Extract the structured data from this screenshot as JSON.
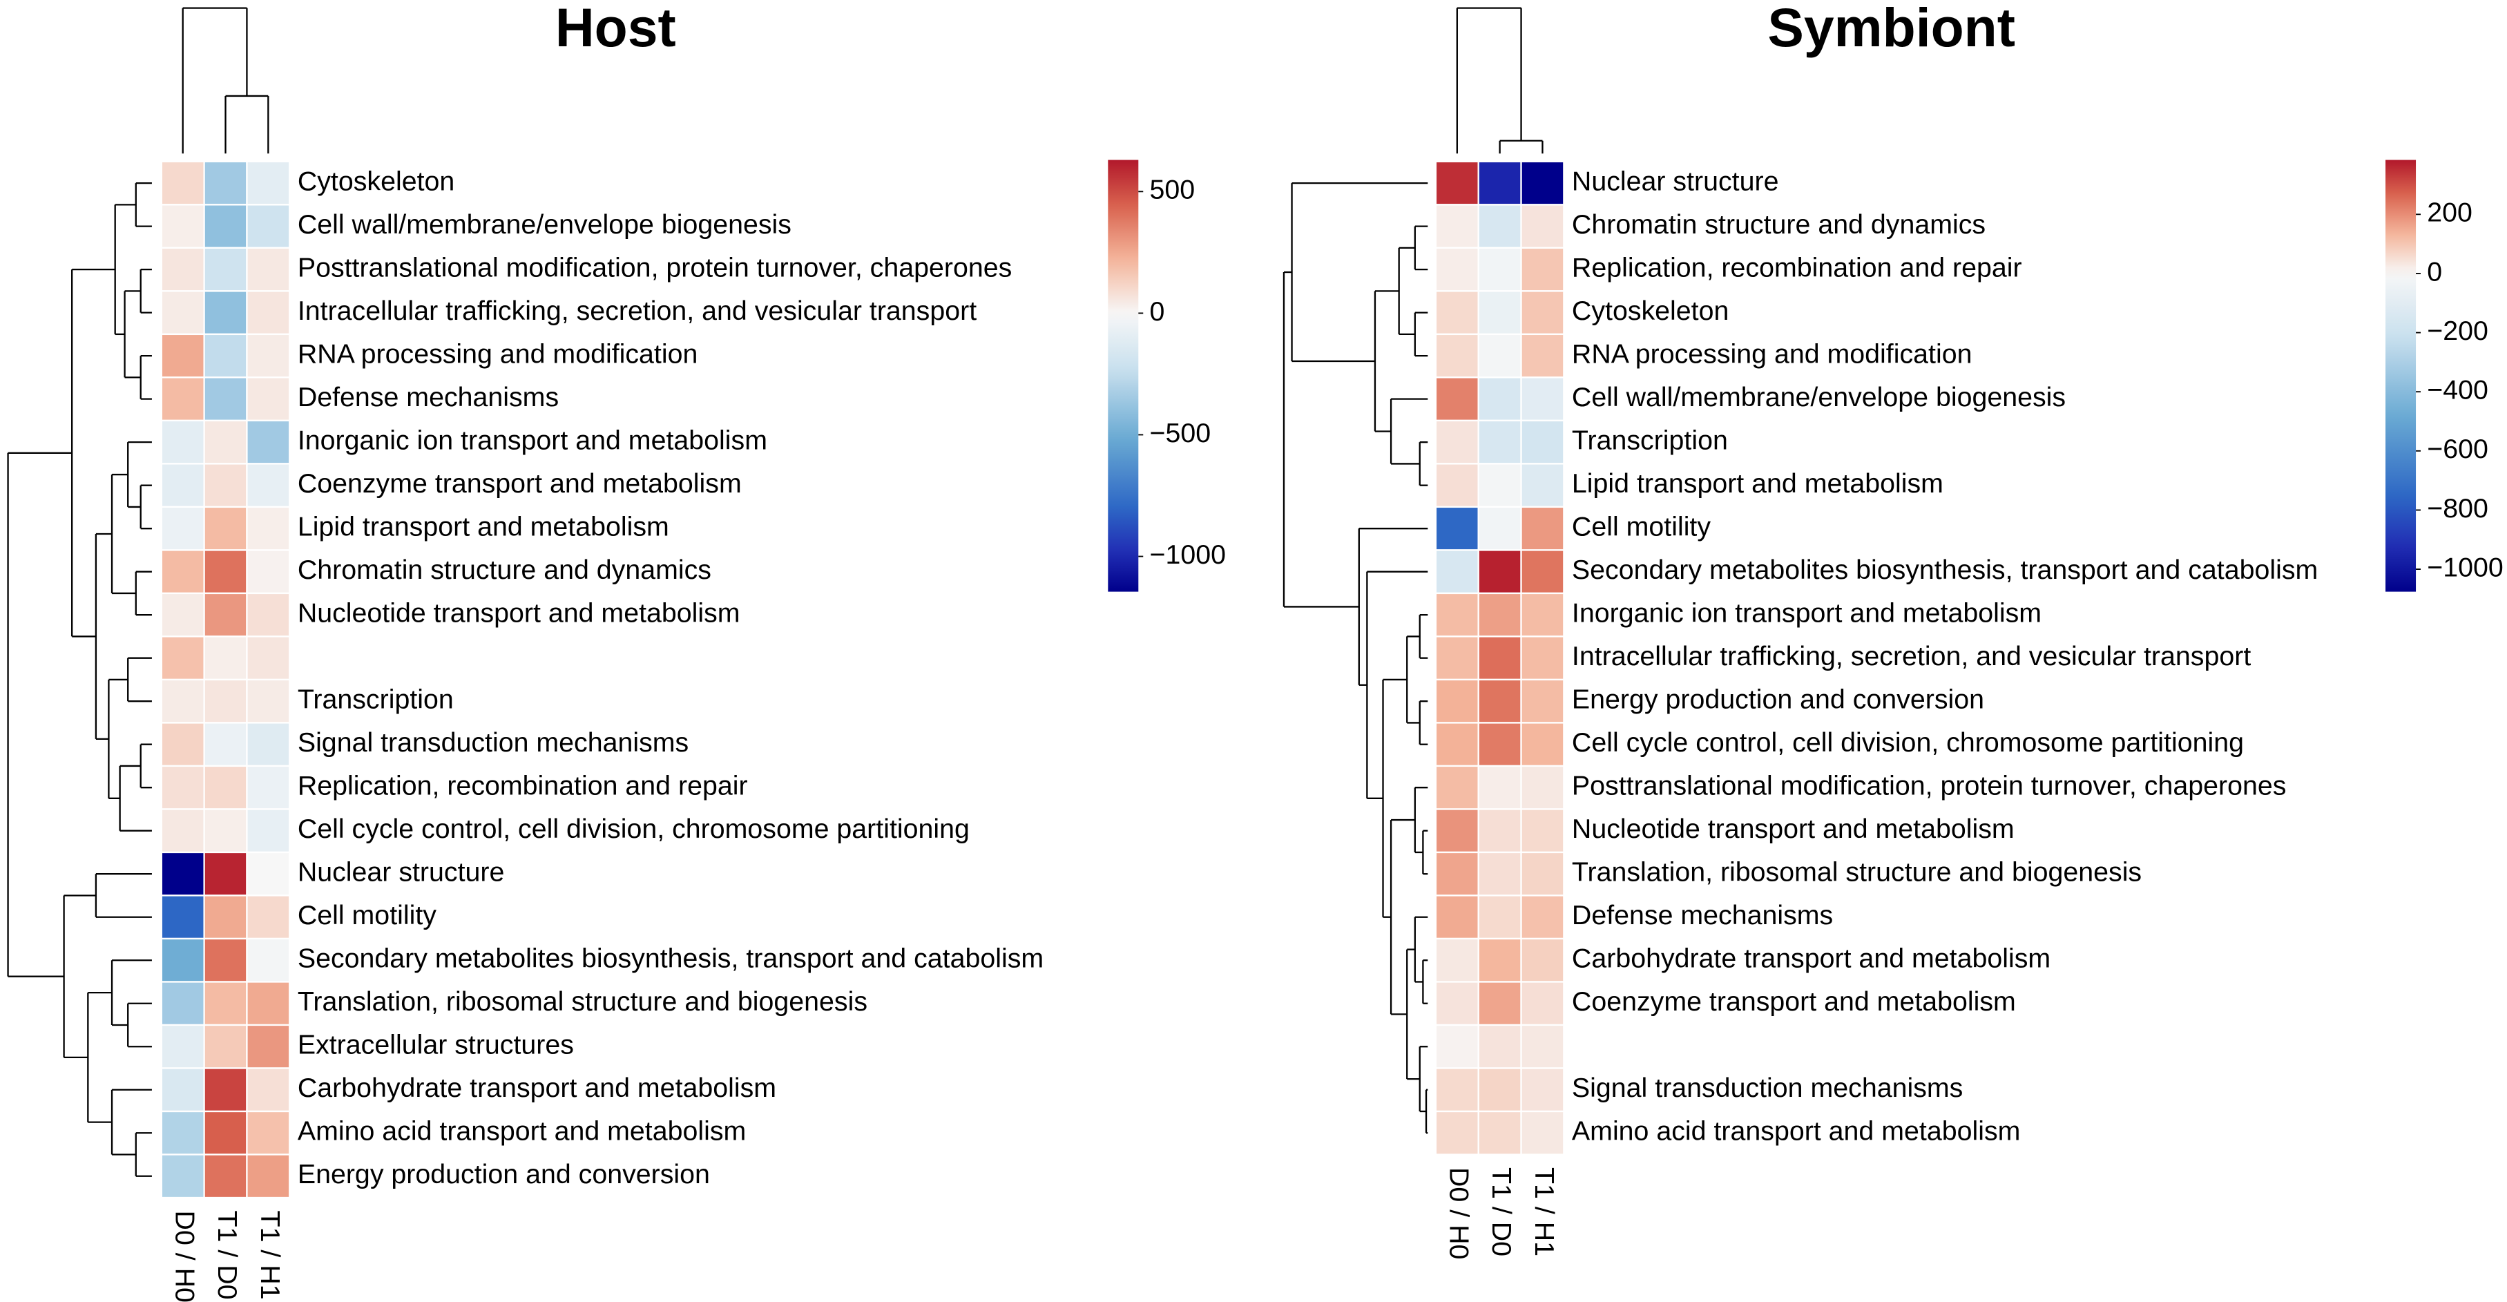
{
  "chart_data": [
    {
      "type": "heatmap",
      "title": "Host",
      "rows": [
        "Cytoskeleton",
        "Cell wall/membrane/envelope biogenesis",
        "Posttranslational modification, protein turnover, chaperones",
        "Intracellular trafficking, secretion, and vesicular transport",
        "RNA processing and modification",
        "Defense mechanisms",
        "Inorganic ion transport and metabolism",
        "Coenzyme transport and metabolism",
        "Lipid transport and metabolism",
        "Chromatin structure and dynamics",
        "Nucleotide transport and metabolism",
        null,
        "Transcription",
        "Signal transduction mechanisms",
        "Replication, recombination and repair",
        "Cell cycle control, cell division, chromosome partitioning",
        "Nuclear structure",
        "Cell motility",
        "Secondary metabolites biosynthesis, transport and catabolism",
        "Translation, ribosomal structure and biogenesis",
        "Extracellular structures",
        "Carbohydrate transport and metabolism",
        "Amino acid transport and metabolism",
        "Energy production and conversion"
      ],
      "columns": [
        "D0 / H0",
        "T1 / D0",
        "T1 / H1"
      ],
      "values": [
        [
          100,
          -350,
          -100
        ],
        [
          30,
          -400,
          -200
        ],
        [
          60,
          -200,
          50
        ],
        [
          40,
          -400,
          60
        ],
        [
          250,
          -250,
          40
        ],
        [
          200,
          -350,
          50
        ],
        [
          -100,
          50,
          -350
        ],
        [
          -100,
          80,
          -80
        ],
        [
          -60,
          200,
          30
        ],
        [
          200,
          400,
          20
        ],
        [
          40,
          300,
          80
        ],
        [
          180,
          30,
          60
        ],
        [
          40,
          60,
          40
        ],
        [
          120,
          -60,
          -120
        ],
        [
          80,
          100,
          -60
        ],
        [
          50,
          30,
          -80
        ],
        [
          -1145,
          600,
          0
        ],
        [
          -800,
          250,
          100
        ],
        [
          -500,
          400,
          -20
        ],
        [
          -350,
          200,
          250
        ],
        [
          -100,
          150,
          300
        ],
        [
          -150,
          520,
          80
        ],
        [
          -300,
          450,
          180
        ],
        [
          -300,
          400,
          280
        ]
      ],
      "zlim": [
        -1145,
        630
      ],
      "zticks": [
        500,
        0,
        {
          "value": -500,
          "label": "−500"
        },
        {
          "value": -1000,
          "label": "−1000"
        }
      ]
    },
    {
      "type": "heatmap",
      "title": "Symbiont",
      "rows": [
        "Nuclear structure",
        "Chromatin structure and dynamics",
        "Replication, recombination and repair",
        "Cytoskeleton",
        "RNA processing and modification",
        "Cell wall/membrane/envelope biogenesis",
        "Transcription",
        "Lipid transport and metabolism",
        "Cell motility",
        "Secondary metabolites biosynthesis, transport and catabolism",
        "Inorganic ion transport and metabolism",
        "Intracellular trafficking, secretion, and vesicular transport",
        "Energy production and conversion",
        "Cell cycle control, cell division, chromosome partitioning",
        "Posttranslational modification, protein turnover, chaperones",
        "Nucleotide transport and metabolism",
        "Translation, ribosomal structure and biogenesis",
        "Defense mechanisms",
        "Carbohydrate transport and metabolism",
        "Coenzyme transport and metabolism",
        null,
        "Signal transduction mechanisms",
        "Amino acid transport and metabolism"
      ],
      "columns": [
        "D0 / H0",
        "T1 / D0",
        "T1 / H1"
      ],
      "values": [
        [
          350,
          -950,
          -1076
        ],
        [
          20,
          -150,
          40
        ],
        [
          20,
          -30,
          100
        ],
        [
          60,
          -60,
          100
        ],
        [
          60,
          -20,
          100
        ],
        [
          220,
          -150,
          -100
        ],
        [
          40,
          -150,
          -170
        ],
        [
          50,
          -20,
          -120
        ],
        [
          -750,
          -30,
          180
        ],
        [
          -150,
          370,
          240
        ],
        [
          120,
          170,
          120
        ],
        [
          120,
          250,
          120
        ],
        [
          140,
          240,
          120
        ],
        [
          140,
          230,
          130
        ],
        [
          120,
          20,
          30
        ],
        [
          190,
          50,
          60
        ],
        [
          160,
          50,
          70
        ],
        [
          150,
          60,
          110
        ],
        [
          30,
          130,
          80
        ],
        [
          40,
          160,
          50
        ],
        [
          10,
          40,
          30
        ],
        [
          60,
          70,
          40
        ],
        [
          60,
          60,
          30
        ]
      ],
      "zlim": [
        -1076,
        384
      ],
      "zticks": [
        200,
        0,
        {
          "value": -200,
          "label": "−200"
        },
        {
          "value": -400,
          "label": "−400"
        },
        {
          "value": -600,
          "label": "−600"
        },
        {
          "value": -800,
          "label": "−800"
        },
        {
          "value": -1000,
          "label": "−1000"
        }
      ]
    }
  ]
}
